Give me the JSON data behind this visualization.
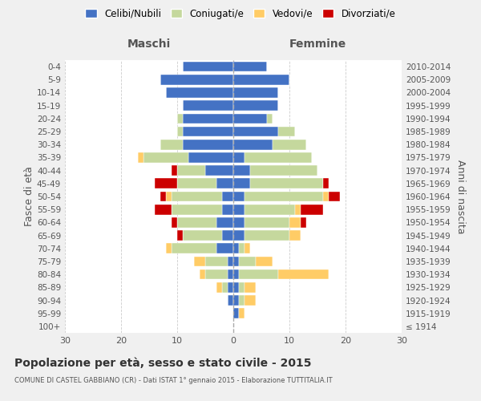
{
  "age_groups": [
    "0-4",
    "5-9",
    "10-14",
    "15-19",
    "20-24",
    "25-29",
    "30-34",
    "35-39",
    "40-44",
    "45-49",
    "50-54",
    "55-59",
    "60-64",
    "65-69",
    "70-74",
    "75-79",
    "80-84",
    "85-89",
    "90-94",
    "95-99",
    "100+"
  ],
  "birth_years": [
    "2010-2014",
    "2005-2009",
    "2000-2004",
    "1995-1999",
    "1990-1994",
    "1985-1989",
    "1980-1984",
    "1975-1979",
    "1970-1974",
    "1965-1969",
    "1960-1964",
    "1955-1959",
    "1950-1954",
    "1945-1949",
    "1940-1944",
    "1935-1939",
    "1930-1934",
    "1925-1929",
    "1920-1924",
    "1915-1919",
    "≤ 1914"
  ],
  "male_celibi": [
    9,
    13,
    12,
    9,
    9,
    9,
    9,
    8,
    5,
    3,
    2,
    2,
    3,
    2,
    3,
    1,
    1,
    1,
    1,
    0,
    0
  ],
  "male_coniugati": [
    0,
    0,
    0,
    0,
    1,
    1,
    4,
    8,
    5,
    7,
    9,
    9,
    7,
    7,
    8,
    4,
    4,
    1,
    0,
    0,
    0
  ],
  "male_vedovi": [
    0,
    0,
    0,
    0,
    0,
    0,
    0,
    1,
    0,
    0,
    1,
    0,
    0,
    0,
    1,
    2,
    1,
    1,
    0,
    0,
    0
  ],
  "male_divorziati": [
    0,
    0,
    0,
    0,
    0,
    0,
    0,
    0,
    1,
    4,
    1,
    3,
    1,
    1,
    0,
    0,
    0,
    0,
    0,
    0,
    0
  ],
  "female_celibi": [
    6,
    10,
    8,
    8,
    6,
    8,
    7,
    2,
    3,
    3,
    2,
    2,
    2,
    2,
    1,
    1,
    1,
    1,
    1,
    1,
    0
  ],
  "female_coniugati": [
    0,
    0,
    0,
    0,
    1,
    3,
    6,
    12,
    12,
    13,
    14,
    9,
    8,
    8,
    1,
    3,
    7,
    1,
    1,
    0,
    0
  ],
  "female_vedovi": [
    0,
    0,
    0,
    0,
    0,
    0,
    0,
    0,
    0,
    0,
    1,
    1,
    2,
    2,
    1,
    3,
    9,
    2,
    2,
    1,
    0
  ],
  "female_divorziati": [
    0,
    0,
    0,
    0,
    0,
    0,
    0,
    0,
    0,
    1,
    2,
    4,
    1,
    0,
    0,
    0,
    0,
    0,
    0,
    0,
    0
  ],
  "colors": {
    "celibi": "#4472c4",
    "coniugati": "#c5d89d",
    "vedovi": "#ffcc66",
    "divorziati": "#cc0000"
  },
  "xlim": 30,
  "title": "Popolazione per età, sesso e stato civile - 2015",
  "subtitle": "COMUNE DI CASTEL GABBIANO (CR) - Dati ISTAT 1° gennaio 2015 - Elaborazione TUTTITALIA.IT",
  "ylabel_left": "Fasce di età",
  "ylabel_right": "Anni di nascita",
  "xlabel_maschi": "Maschi",
  "xlabel_femmine": "Femmine",
  "bg_color": "#f0f0f0",
  "plot_bg": "#ffffff"
}
